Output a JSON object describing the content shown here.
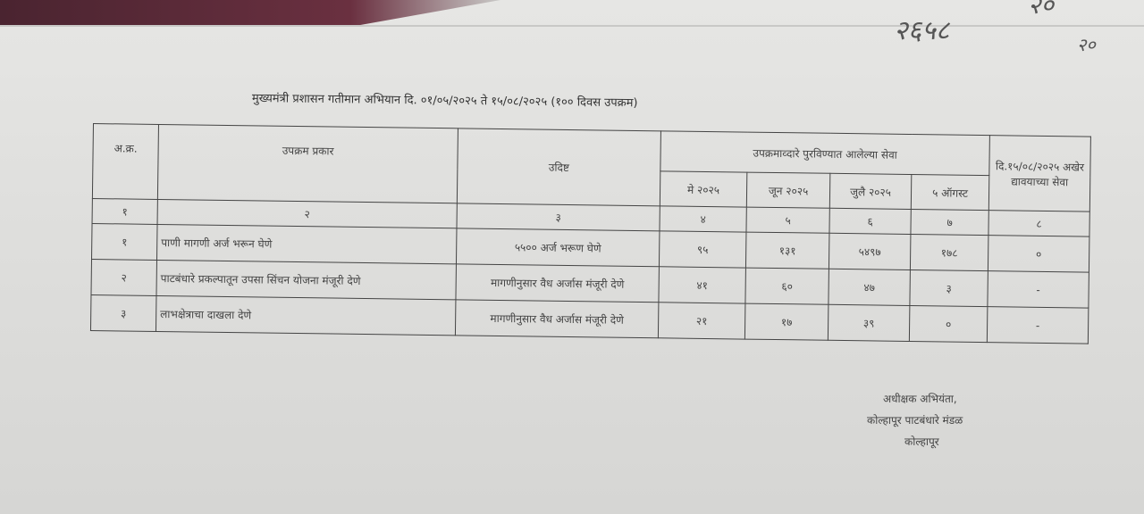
{
  "handwritten_notes": [
    "२६५८",
    "२०",
    "२०"
  ],
  "title": "मुख्यमंत्री प्रशासन गतीमान अभियान दि. ०१/०५/२०२५ ते १५/०८/२०२५ (१०० दिवस उपक्रम)",
  "table": {
    "headers": {
      "serial": "अ.क्र.",
      "activity_type": "उपक्रम प्रकार",
      "target": "उदिष्ट",
      "services_group": "उपक्रमाव्दारे पुरविण्यात आलेल्या सेवा",
      "months": [
        "मे २०२५",
        "जून २०२५",
        "जुलै २०२५",
        "५ ऑगस्ट"
      ],
      "remaining": "दि.१५/०८/२०२५ अखेर द्यावयाच्या सेवा"
    },
    "column_numbers": [
      "१",
      "२",
      "३",
      "४",
      "५",
      "६",
      "७",
      "८"
    ],
    "rows": [
      {
        "serial": "१",
        "activity": "पाणी मागणी अर्ज भरून घेणे",
        "target": "५५०० अर्ज भरूण घेणे",
        "values": [
          "९५",
          "१३१",
          "५४९७",
          "१७८"
        ],
        "remaining": "०"
      },
      {
        "serial": "२",
        "activity": "पाटबंधारे प्रकल्पातून उपसा सिंचन योजना मंजूरी देणे",
        "target": "मागणीनुसार वैध अर्जास मंजूरी देणे",
        "values": [
          "४१",
          "६०",
          "४७",
          "३"
        ],
        "remaining": "-"
      },
      {
        "serial": "३",
        "activity": "लाभक्षेत्राचा दाखला देणे",
        "target": "मागणीनुसार वैध अर्जास मंजूरी देणे",
        "values": [
          "२१",
          "१७",
          "३९",
          "०"
        ],
        "remaining": "-"
      }
    ]
  },
  "signature": {
    "designation": "अधीक्षक अभियंता,",
    "office": "कोल्हापूर पाटबंधारे मंडळ",
    "place": "कोल्हापूर"
  }
}
